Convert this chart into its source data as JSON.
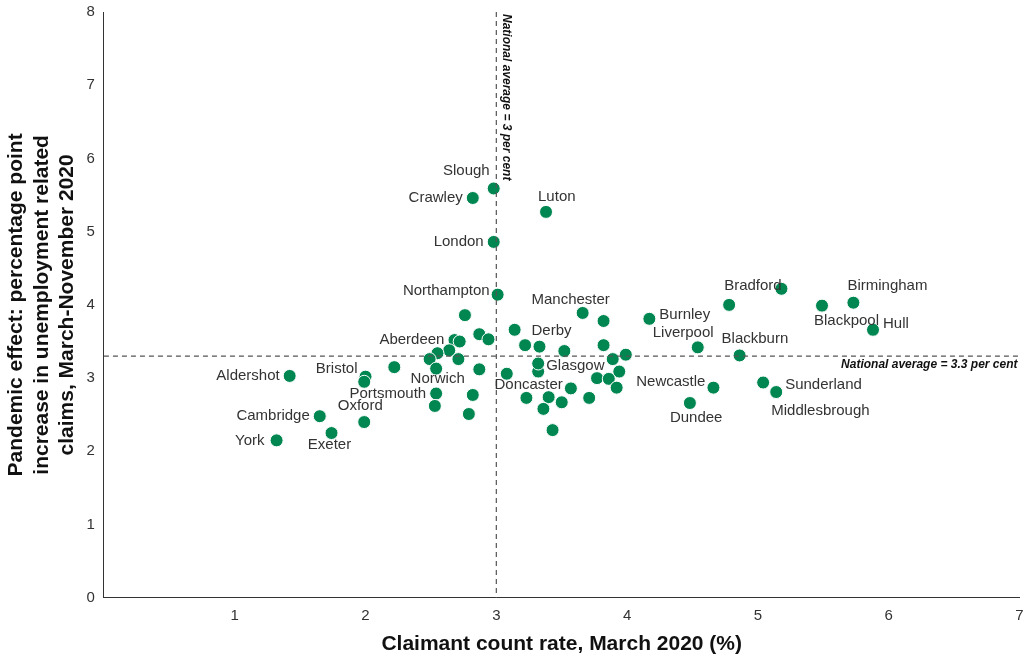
{
  "chart_data": {
    "type": "scatter",
    "xlabel": "Claimant count rate, March 2020 (%)",
    "ylabel": "Pandemic effect: percentage point increase in unemployment related claims, March-November 2020",
    "x": [
      1.32,
      1.74,
      1.65,
      1.99,
      1.42,
      2.0,
      2.54,
      2.82,
      2.68,
      3.01,
      2.98,
      2.82,
      2.98,
      3.38,
      3.33,
      3.66,
      3.32,
      3.57,
      4.17,
      4.54,
      4.86,
      4.78,
      5.73,
      5.49,
      5.88,
      4.66,
      4.48,
      5.04,
      5.14,
      5.18,
      2.76,
      2.87,
      2.94,
      3.14,
      3.22,
      3.52,
      3.82,
      3.82,
      2.72,
      2.64,
      2.55,
      2.49,
      2.71,
      2.54,
      2.22,
      1.99,
      2.87,
      3.08,
      3.32,
      2.53,
      2.79,
      3.23,
      3.4,
      3.36,
      3.5,
      3.71,
      3.43,
      3.77,
      3.99,
      3.89,
      3.94,
      3.86,
      3.92
    ],
    "values": [
      2.15,
      2.25,
      2.48,
      2.4,
      3.03,
      3.02,
      2.79,
      2.77,
      3.52,
      4.14,
      4.86,
      5.46,
      5.59,
      5.27,
      3.43,
      3.89,
      3.09,
      2.86,
      3.81,
      3.42,
      3.31,
      4.0,
      4.03,
      3.99,
      3.66,
      2.87,
      2.66,
      2.94,
      2.81,
      4.22,
      3.86,
      3.6,
      3.53,
      3.66,
      3.45,
      3.37,
      3.78,
      3.45,
      3.5,
      3.38,
      3.34,
      3.26,
      3.26,
      3.13,
      3.15,
      2.95,
      3.12,
      3.06,
      3.2,
      2.62,
      2.51,
      2.73,
      2.74,
      2.58,
      2.67,
      2.73,
      2.29,
      3.0,
      3.32,
      3.26,
      3.09,
      2.99,
      2.87
    ],
    "color": "#008751",
    "marker": "circle",
    "xlim": [
      0,
      7
    ],
    "xticks": [
      1,
      2,
      3,
      4,
      5,
      6,
      7
    ],
    "ylim": [
      0,
      8
    ],
    "yticks": [
      0,
      1,
      2,
      3,
      4,
      5,
      6,
      7,
      8
    ],
    "grid": false,
    "legend": false,
    "ref_lines": [
      {
        "axis": "x",
        "value": 3,
        "label": "National average = 3 per cent",
        "line_style": "dashed",
        "color": "#555555"
      },
      {
        "axis": "y",
        "value": 3.3,
        "label": "National average = 3.3 per cent",
        "line_style": "dashed",
        "color": "#555555"
      }
    ],
    "annotations": [
      {
        "text": "York",
        "x": 1.32,
        "y": 2.15
      },
      {
        "text": "Exeter",
        "x": 1.74,
        "y": 2.25
      },
      {
        "text": "Cambridge",
        "x": 1.65,
        "y": 2.48
      },
      {
        "text": "Oxford",
        "x": 1.99,
        "y": 2.4
      },
      {
        "text": "Aldershot",
        "x": 1.42,
        "y": 3.03
      },
      {
        "text": "Bristol",
        "x": 2.0,
        "y": 3.02
      },
      {
        "text": "Portsmouth",
        "x": 2.54,
        "y": 2.79
      },
      {
        "text": "Norwich",
        "x": 2.82,
        "y": 2.77
      },
      {
        "text": "Aberdeen",
        "x": 2.68,
        "y": 3.52
      },
      {
        "text": "Northampton",
        "x": 3.01,
        "y": 4.14
      },
      {
        "text": "London",
        "x": 2.98,
        "y": 4.86
      },
      {
        "text": "Crawley",
        "x": 2.82,
        "y": 5.46
      },
      {
        "text": "Slough",
        "x": 2.98,
        "y": 5.59
      },
      {
        "text": "Luton",
        "x": 3.38,
        "y": 5.27
      },
      {
        "text": "Derby",
        "x": 3.33,
        "y": 3.43
      },
      {
        "text": "Manchester",
        "x": 3.66,
        "y": 3.89
      },
      {
        "text": "Glasgow",
        "x": 3.32,
        "y": 3.09
      },
      {
        "text": "Doncaster",
        "x": 3.57,
        "y": 2.86
      },
      {
        "text": "Burnley",
        "x": 4.17,
        "y": 3.81
      },
      {
        "text": "Liverpool",
        "x": 4.54,
        "y": 3.42
      },
      {
        "text": "Blackburn",
        "x": 4.86,
        "y": 3.31
      },
      {
        "text": "Bradford",
        "x": 4.78,
        "y": 4.0
      },
      {
        "text": "Birmingham",
        "x": 5.73,
        "y": 4.03
      },
      {
        "text": "Blackpool",
        "x": 5.49,
        "y": 3.99
      },
      {
        "text": "Hull",
        "x": 5.88,
        "y": 3.66
      },
      {
        "text": "Newcastle",
        "x": 4.66,
        "y": 2.87
      },
      {
        "text": "Dundee",
        "x": 4.48,
        "y": 2.66
      },
      {
        "text": "Sunderland",
        "x": 5.04,
        "y": 2.94
      },
      {
        "text": "Middlesbrough",
        "x": 5.14,
        "y": 2.81
      }
    ]
  }
}
